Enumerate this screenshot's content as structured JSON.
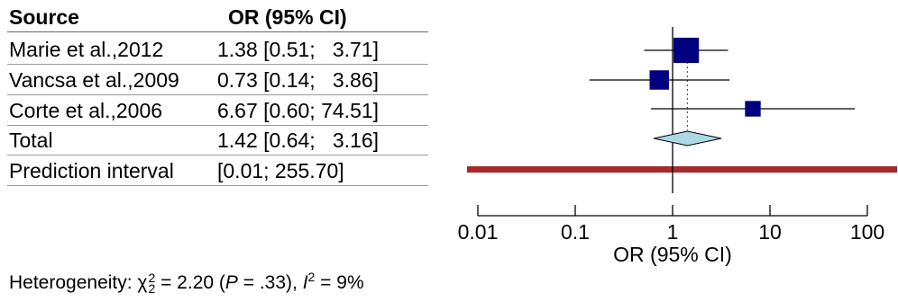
{
  "table": {
    "header": {
      "source": "Source",
      "or": "OR (95% CI)"
    },
    "rows": [
      {
        "source": "Marie et al.,2012",
        "ci": "1.38 [0.51;   3.71]"
      },
      {
        "source": "Vancsa et al.,2009",
        "ci": "0.73 [0.14;   3.86]"
      },
      {
        "source": "Corte et al.,2006",
        "ci": "6.67 [0.60; 74.51]"
      },
      {
        "source": "Total",
        "ci": "1.42 [0.64;   3.16]"
      },
      {
        "source": "Prediction interval",
        "ci": "[0.01; 255.70]"
      }
    ]
  },
  "heterogeneity": {
    "prefix": "Heterogeneity: ",
    "chi": "χ",
    "chi_sub": "2",
    "chi_sup": "2",
    "mid": " = 2.20 (",
    "p": "P",
    "p_val": " = .33), ",
    "i": "I",
    "i_sup": "2",
    "i_val": " = 9%"
  },
  "chart_data": {
    "type": "forest",
    "xlabel": "OR (95% CI)",
    "x_scale": "log",
    "xlim": [
      0.01,
      100
    ],
    "ticks": [
      0.01,
      0.1,
      1,
      10,
      100
    ],
    "tick_labels": [
      "0.01",
      "0.1",
      "1",
      "10",
      "100"
    ],
    "reference_line": 1,
    "studies": [
      {
        "name": "Marie et al.,2012",
        "or": 1.38,
        "lower": 0.51,
        "upper": 3.71,
        "weight": 0.6
      },
      {
        "name": "Vancsa et al.,2009",
        "or": 0.73,
        "lower": 0.14,
        "upper": 3.86,
        "weight": 0.27
      },
      {
        "name": "Corte et al.,2006",
        "or": 6.67,
        "lower": 0.6,
        "upper": 74.51,
        "weight": 0.13
      }
    ],
    "total": {
      "or": 1.42,
      "lower": 0.64,
      "upper": 3.16
    },
    "prediction_interval": {
      "lower": 0.01,
      "upper": 255.7
    },
    "colors": {
      "square": "#000080",
      "diamond": "#add8e6",
      "prediction": "#a52a2a",
      "ci_line": "#000000"
    }
  }
}
